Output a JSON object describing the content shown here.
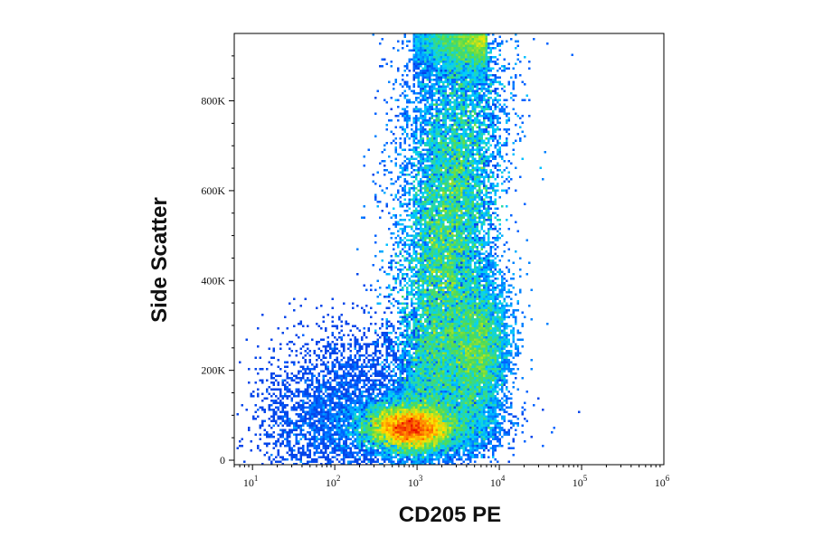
{
  "chart_data": {
    "type": "scatter",
    "xlabel": "CD205 PE",
    "ylabel": "Side Scatter",
    "x_scale": "log",
    "xlim": [
      6,
      1000000
    ],
    "ylim": [
      -10000,
      950000
    ],
    "x_ticks": [
      {
        "value": 10,
        "base": "10",
        "exp": "1"
      },
      {
        "value": 100,
        "base": "10",
        "exp": "2"
      },
      {
        "value": 1000,
        "base": "10",
        "exp": "3"
      },
      {
        "value": 10000,
        "base": "10",
        "exp": "4"
      },
      {
        "value": 100000,
        "base": "10",
        "exp": "5"
      },
      {
        "value": 1000000,
        "base": "10",
        "exp": "6"
      }
    ],
    "y_ticks": [
      {
        "value": 0,
        "label": "0"
      },
      {
        "value": 200000,
        "label": "200K"
      },
      {
        "value": 400000,
        "label": "400K"
      },
      {
        "value": 600000,
        "label": "600K"
      },
      {
        "value": 800000,
        "label": "800K"
      }
    ],
    "grid": false,
    "legend": "none",
    "color_scale": "density (blue-cyan-green-yellow-red)",
    "populations": [
      {
        "center_x": 800,
        "center_y": 75000,
        "peak_density": "red"
      },
      {
        "center_x": 2300,
        "center_y": 500000,
        "peak_density": "yellow"
      },
      {
        "center_x": 5500,
        "center_y": 240000,
        "peak_density": "yellow"
      }
    ]
  },
  "colors": {
    "density_low": "#0a14c8",
    "density_mid": "#00c8ff",
    "density_high_mid": "#4cd94c",
    "density_high": "#ffe000",
    "density_peak": "#e80000",
    "axis": "#000000"
  }
}
